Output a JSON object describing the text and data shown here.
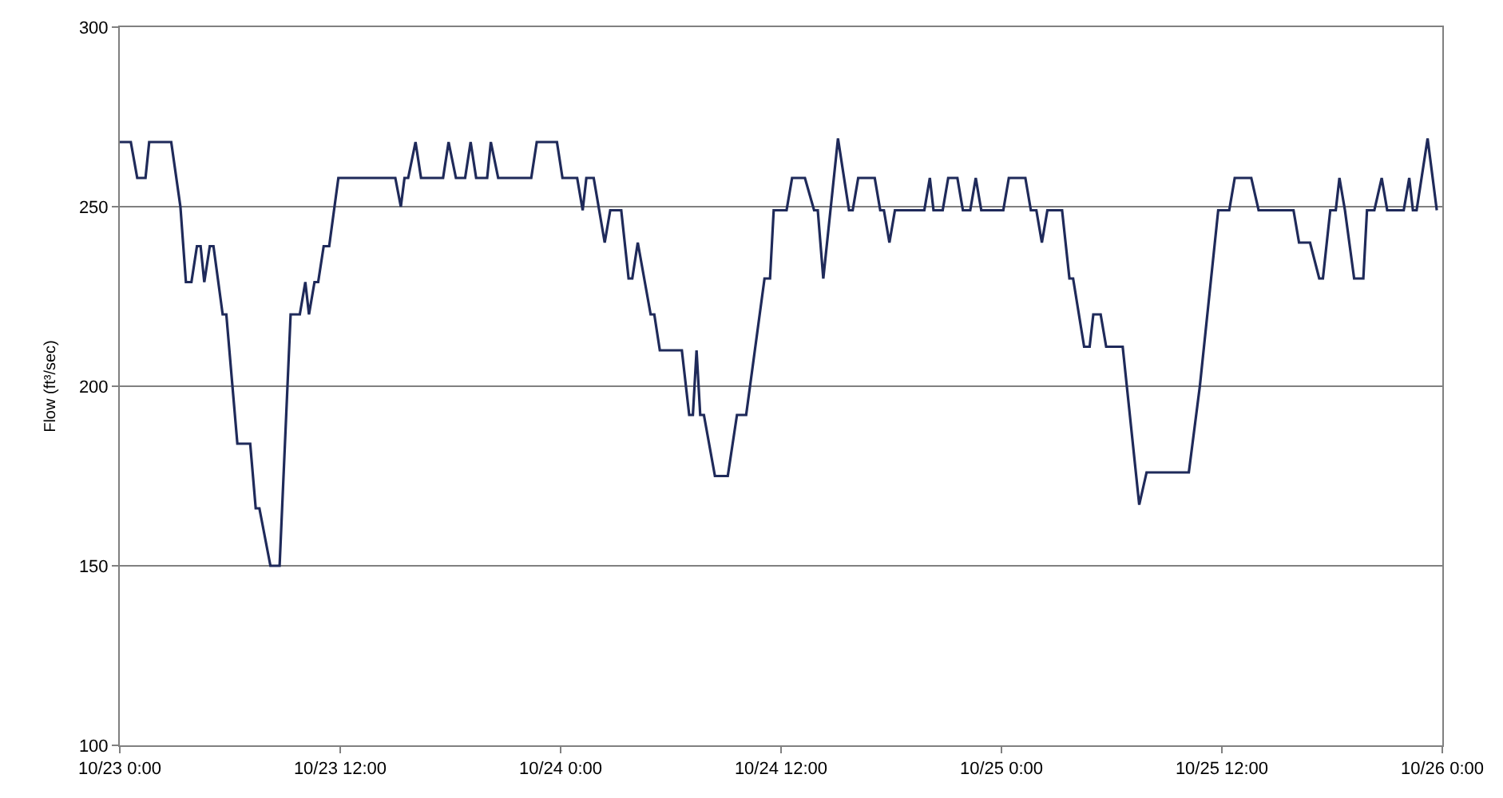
{
  "chart_data": {
    "type": "line",
    "ylabel": "Flow (ft³/sec)",
    "xlim": [
      "--10-23T00:00",
      "--10-26T00:00"
    ],
    "xticks": [
      {
        "value": "--10-23T00:00",
        "label": "10/23 0:00"
      },
      {
        "value": "--10-23T12:00",
        "label": "10/23 12:00"
      },
      {
        "value": "--10-24T00:00",
        "label": "10/24 0:00"
      },
      {
        "value": "--10-24T12:00",
        "label": "10/24 12:00"
      },
      {
        "value": "--10-25T00:00",
        "label": "10/25 0:00"
      },
      {
        "value": "--10-25T12:00",
        "label": "10/25 12:00"
      },
      {
        "value": "--10-26T00:00",
        "label": "10/26 0:00"
      }
    ],
    "ylim": [
      100,
      300
    ],
    "yticks": [
      100,
      150,
      200,
      250,
      300
    ],
    "grid": "y",
    "marker": "none",
    "line_style": "solid",
    "series": [
      {
        "color": "#1f2a5a",
        "x": [
          "--10-23T00:00",
          "--10-23T00:36",
          "--10-23T00:57",
          "--10-23T01:24",
          "--10-23T01:36",
          "--10-23T02:48",
          "--10-23T03:18",
          "--10-23T03:36",
          "--10-23T03:54",
          "--10-23T04:12",
          "--10-23T04:24",
          "--10-23T04:36",
          "--10-23T04:54",
          "--10-23T05:06",
          "--10-23T05:36",
          "--10-23T05:48",
          "--10-23T06:24",
          "--10-23T07:06",
          "--10-23T07:24",
          "--10-23T07:36",
          "--10-23T08:12",
          "--10-23T08:42",
          "--10-23T09:18",
          "--10-23T09:48",
          "--10-23T10:06",
          "--10-23T10:18",
          "--10-23T10:36",
          "--10-23T10:48",
          "--10-23T11:06",
          "--10-23T11:24",
          "--10-23T11:54",
          "--10-23T15:00",
          "--10-23T15:18",
          "--10-23T15:30",
          "--10-23T15:42",
          "--10-23T16:06",
          "--10-23T16:24",
          "--10-23T17:36",
          "--10-23T17:54",
          "--10-23T18:18",
          "--10-23T18:48",
          "--10-23T19:06",
          "--10-23T19:24",
          "--10-23T20:00",
          "--10-23T20:12",
          "--10-23T20:36",
          "--10-23T22:24",
          "--10-23T22:42",
          "--10-23T23:48",
          "--10-24T00:06",
          "--10-24T00:54",
          "--10-24T01:12",
          "--10-24T01:24",
          "--10-24T01:48",
          "--10-24T02:06",
          "--10-24T02:24",
          "--10-24T02:42",
          "--10-24T03:18",
          "--10-24T03:42",
          "--10-24T03:54",
          "--10-24T04:12",
          "--10-24T04:54",
          "--10-24T05:06",
          "--10-24T05:24",
          "--10-24T06:36",
          "--10-24T07:00",
          "--10-24T07:12",
          "--10-24T07:24",
          "--10-24T07:36",
          "--10-24T07:48",
          "--10-24T08:24",
          "--10-24T09:06",
          "--10-24T09:36",
          "--10-24T10:06",
          "--10-24T11:06",
          "--10-24T11:24",
          "--10-24T11:36",
          "--10-24T12:18",
          "--10-24T12:36",
          "--10-24T13:18",
          "--10-24T13:48",
          "--10-24T14:00",
          "--10-24T14:18",
          "--10-24T15:06",
          "--10-24T15:42",
          "--10-24T15:54",
          "--10-24T16:12",
          "--10-24T17:06",
          "--10-24T17:24",
          "--10-24T17:36",
          "--10-24T17:54",
          "--10-24T18:12",
          "--10-24T19:48",
          "--10-24T20:06",
          "--10-24T20:18",
          "--10-24T20:48",
          "--10-24T21:06",
          "--10-24T21:36",
          "--10-24T21:54",
          "--10-24T22:18",
          "--10-24T22:36",
          "--10-24T22:54",
          "--10-25T00:06",
          "--10-25T00:24",
          "--10-25T01:18",
          "--10-25T01:36",
          "--10-25T01:54",
          "--10-25T02:12",
          "--10-25T02:30",
          "--10-25T03:18",
          "--10-25T03:42",
          "--10-25T03:54",
          "--10-25T04:30",
          "--10-25T04:48",
          "--10-25T05:00",
          "--10-25T05:24",
          "--10-25T05:42",
          "--10-25T06:36",
          "--10-25T07:30",
          "--10-25T07:54",
          "--10-25T10:12",
          "--10-25T10:48",
          "--10-25T11:48",
          "--10-25T12:24",
          "--10-25T12:42",
          "--10-25T13:36",
          "--10-25T14:00",
          "--10-25T15:54",
          "--10-25T16:12",
          "--10-25T16:48",
          "--10-25T17:18",
          "--10-25T17:30",
          "--10-25T17:54",
          "--10-25T18:12",
          "--10-25T18:24",
          "--10-25T18:42",
          "--10-25T19:12",
          "--10-25T19:42",
          "--10-25T19:54",
          "--10-25T20:18",
          "--10-25T20:42",
          "--10-25T21:00",
          "--10-25T21:54",
          "--10-25T22:12",
          "--10-25T22:24",
          "--10-25T22:36",
          "--10-25T23:12",
          "--10-25T23:42"
        ],
        "values": [
          268,
          268,
          258,
          258,
          268,
          268,
          250,
          229,
          229,
          239,
          239,
          229,
          239,
          239,
          220,
          220,
          184,
          184,
          166,
          166,
          150,
          150,
          220,
          220,
          229,
          220,
          229,
          229,
          239,
          239,
          258,
          258,
          250,
          258,
          258,
          268,
          258,
          258,
          268,
          258,
          258,
          268,
          258,
          258,
          268,
          258,
          258,
          268,
          268,
          258,
          258,
          249,
          258,
          258,
          249,
          240,
          249,
          249,
          230,
          230,
          240,
          220,
          220,
          210,
          210,
          192,
          192,
          210,
          192,
          192,
          175,
          175,
          192,
          192,
          230,
          230,
          249,
          249,
          258,
          258,
          249,
          249,
          230,
          269,
          249,
          249,
          258,
          258,
          249,
          249,
          240,
          249,
          249,
          258,
          249,
          249,
          258,
          258,
          249,
          249,
          258,
          249,
          249,
          258,
          258,
          249,
          249,
          240,
          249,
          249,
          230,
          230,
          211,
          211,
          220,
          220,
          211,
          211,
          167,
          176,
          176,
          200,
          249,
          249,
          258,
          258,
          249,
          249,
          240,
          240,
          230,
          230,
          249,
          249,
          258,
          249,
          230,
          230,
          249,
          249,
          258,
          249,
          249,
          258,
          249,
          249,
          269,
          249
        ]
      }
    ]
  }
}
